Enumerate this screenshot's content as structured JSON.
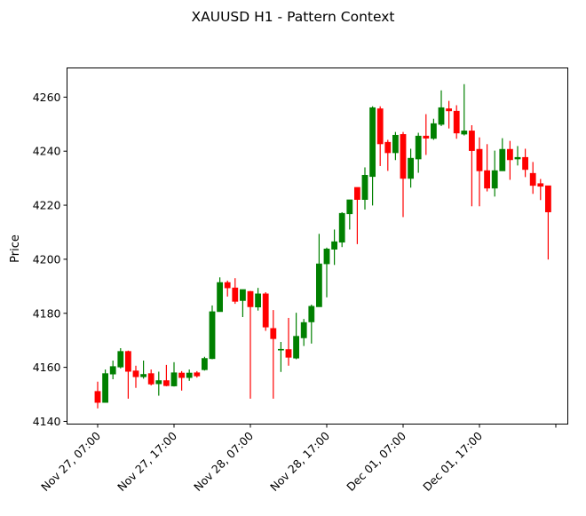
{
  "chart_data": {
    "type": "candlestick",
    "title": "XAUUSD H1 - Pattern Context",
    "xlabel": "",
    "ylabel": "Price",
    "ylim": [
      4139,
      4270.8
    ],
    "grid": false,
    "colors": {
      "up": "#008000",
      "down": "#ff0000"
    },
    "yticks": [
      4140,
      4160,
      4180,
      4200,
      4220,
      4240,
      4260
    ],
    "xticks": [
      {
        "index": 0,
        "label": "Nov 27, 07:00"
      },
      {
        "index": 10,
        "label": "Nov 27, 17:00"
      },
      {
        "index": 20,
        "label": "Nov 28, 07:00"
      },
      {
        "index": 30,
        "label": "Nov 28, 17:00"
      },
      {
        "index": 40,
        "label": "Dec 01, 07:00"
      },
      {
        "index": 50,
        "label": "Dec 01, 17:00"
      },
      {
        "index": 60,
        "label": ""
      }
    ],
    "ohlc_fields": [
      "open",
      "high",
      "low",
      "close"
    ],
    "candles": [
      [
        4151.1,
        4154.7,
        4144.8,
        4147.0
      ],
      [
        4147.0,
        4159.2,
        4147.0,
        4157.7
      ],
      [
        4157.5,
        4162.5,
        4155.6,
        4160.3
      ],
      [
        4160.1,
        4167.1,
        4159.6,
        4165.9
      ],
      [
        4165.9,
        4166.2,
        4148.4,
        4158.5
      ],
      [
        4158.7,
        4160.6,
        4152.4,
        4156.5
      ],
      [
        4156.5,
        4162.5,
        4155.8,
        4157.4
      ],
      [
        4157.7,
        4159.2,
        4153.3,
        4153.8
      ],
      [
        4153.9,
        4158.4,
        4149.5,
        4155.1
      ],
      [
        4155.1,
        4160.9,
        4153.0,
        4153.2
      ],
      [
        4153.1,
        4161.9,
        4152.9,
        4158.0
      ],
      [
        4157.9,
        4158.6,
        4151.4,
        4156.2
      ],
      [
        4156.2,
        4159.2,
        4155.0,
        4157.9
      ],
      [
        4158.0,
        4158.6,
        4156.2,
        4156.8
      ],
      [
        4159.1,
        4163.9,
        4158.8,
        4163.3
      ],
      [
        4163.2,
        4182.9,
        4163.0,
        4180.6
      ],
      [
        4180.6,
        4193.3,
        4180.6,
        4191.4
      ],
      [
        4191.4,
        4192.1,
        4186.2,
        4189.4
      ],
      [
        4189.4,
        4193.0,
        4183.5,
        4184.4
      ],
      [
        4184.7,
        4188.8,
        4178.6,
        4188.8
      ],
      [
        4188.1,
        4188.3,
        4148.4,
        4182.4
      ],
      [
        4182.3,
        4189.4,
        4181.0,
        4187.2
      ],
      [
        4187.2,
        4187.8,
        4173.5,
        4174.9
      ],
      [
        4174.4,
        4181.2,
        4148.4,
        4170.6
      ],
      [
        4166.5,
        4169.4,
        4158.3,
        4166.7
      ],
      [
        4166.6,
        4178.3,
        4160.6,
        4163.7
      ],
      [
        4163.4,
        4180.2,
        4163.0,
        4171.5
      ],
      [
        4170.9,
        4177.9,
        4167.9,
        4176.6
      ],
      [
        4176.8,
        4183.2,
        4168.8,
        4182.6
      ],
      [
        4182.4,
        4209.4,
        4182.4,
        4198.3
      ],
      [
        4198.3,
        4204.3,
        4185.9,
        4203.8
      ],
      [
        4203.7,
        4211.0,
        4197.9,
        4206.5
      ],
      [
        4206.3,
        4217.4,
        4204.5,
        4217.0
      ],
      [
        4216.8,
        4222.0,
        4211.0,
        4222.0
      ],
      [
        4226.6,
        4226.6,
        4205.6,
        4222.1
      ],
      [
        4222.1,
        4234.0,
        4218.4,
        4231.1
      ],
      [
        4230.6,
        4256.6,
        4219.9,
        4256.1
      ],
      [
        4255.7,
        4256.6,
        4234.5,
        4242.7
      ],
      [
        4243.3,
        4244.2,
        4232.7,
        4239.4
      ],
      [
        4239.4,
        4247.1,
        4236.7,
        4245.9
      ],
      [
        4246.2,
        4247.1,
        4215.6,
        4229.9
      ],
      [
        4229.9,
        4240.9,
        4226.5,
        4237.4
      ],
      [
        4237.1,
        4246.8,
        4232.0,
        4245.6
      ],
      [
        4245.6,
        4253.7,
        4238.6,
        4244.8
      ],
      [
        4244.7,
        4252.0,
        4244.2,
        4250.2
      ],
      [
        4249.9,
        4262.5,
        4249.3,
        4256.1
      ],
      [
        4255.7,
        4258.6,
        4248.4,
        4254.9
      ],
      [
        4254.8,
        4257.0,
        4244.6,
        4246.7
      ],
      [
        4246.3,
        4264.8,
        4245.8,
        4247.5
      ],
      [
        4247.5,
        4249.6,
        4219.6,
        4240.2
      ],
      [
        4240.7,
        4245.1,
        4219.6,
        4232.7
      ],
      [
        4232.8,
        4242.6,
        4225.1,
        4226.3
      ],
      [
        4226.3,
        4240.2,
        4223.2,
        4232.8
      ],
      [
        4232.7,
        4244.8,
        4232.7,
        4240.7
      ],
      [
        4240.7,
        4243.8,
        4229.4,
        4236.8
      ],
      [
        4237.1,
        4241.9,
        4234.7,
        4237.7
      ],
      [
        4237.7,
        4240.9,
        4230.4,
        4233.2
      ],
      [
        4231.8,
        4236.0,
        4224.2,
        4227.3
      ],
      [
        4228.0,
        4229.7,
        4221.9,
        4227.0
      ],
      [
        4227.2,
        4227.2,
        4199.9,
        4217.5
      ]
    ]
  }
}
